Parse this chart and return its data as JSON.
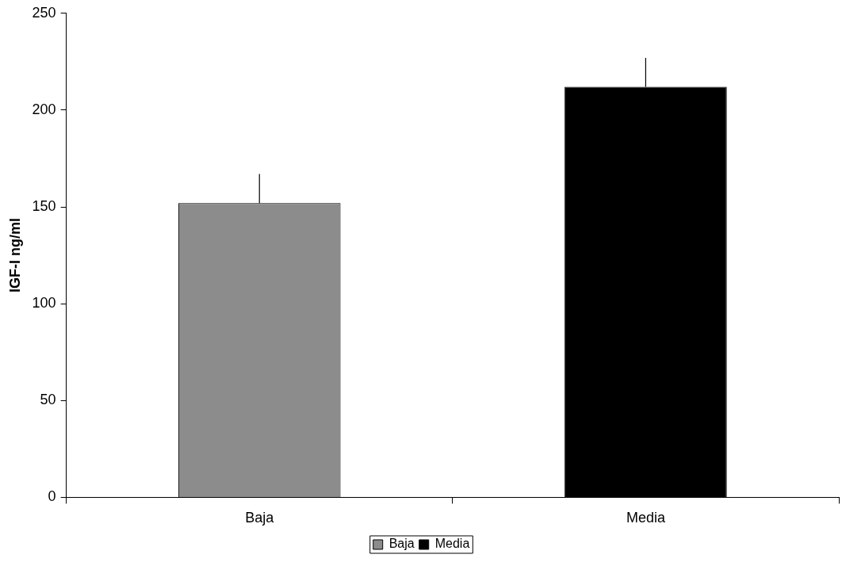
{
  "chart_data": {
    "type": "bar",
    "ylabel": "IGF-I ng/ml",
    "categories": [
      "Baja",
      "Media"
    ],
    "series": [
      {
        "name": "Baja",
        "color": "#8c8c8c",
        "values": [
          152,
          null
        ],
        "errors": [
          [
            152,
            167
          ],
          null
        ]
      },
      {
        "name": "Media",
        "color": "#000000",
        "values": [
          null,
          212
        ],
        "errors": [
          null,
          [
            212,
            227
          ]
        ]
      }
    ],
    "ylim": [
      0,
      250
    ],
    "yticks": [
      0,
      50,
      100,
      150,
      200,
      250
    ],
    "grid": false,
    "legend": "bottom"
  }
}
